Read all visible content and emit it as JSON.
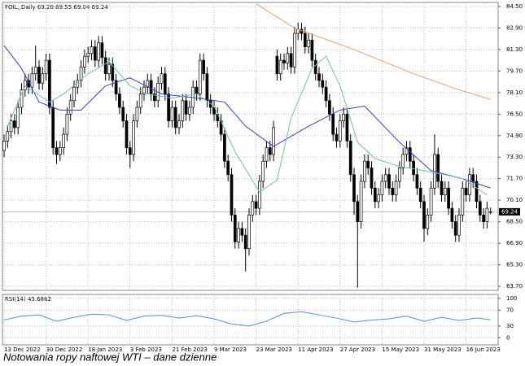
{
  "chart_data": [
    {
      "type": "candlestick",
      "title": "FOIL,,Daily  69.20 69.55 69.04 69.24",
      "categories": [
        "13 Dec 2022",
        null,
        null,
        null,
        null,
        null,
        null,
        null,
        null,
        null,
        null,
        null,
        "30 Dec 2022",
        null,
        null,
        null,
        null,
        null,
        null,
        null,
        null,
        null,
        null,
        null,
        "18 Jan 2023",
        null,
        null,
        null,
        null,
        null,
        null,
        null,
        null,
        null,
        null,
        null,
        "3 Feb 2023",
        null,
        null,
        null,
        null,
        null,
        null,
        null,
        null,
        null,
        null,
        null,
        "21 Feb 2023",
        null,
        null,
        null,
        null,
        null,
        null,
        null,
        null,
        null,
        null,
        null,
        "9 Mar 2023",
        null,
        null,
        null,
        null,
        null,
        null,
        null,
        null,
        null,
        null,
        null,
        "23 Mar 2023",
        null,
        null,
        null,
        null,
        null,
        null,
        null,
        null,
        null,
        null,
        null,
        "11 Apr 2023",
        null,
        null,
        null,
        null,
        null,
        null,
        null,
        null,
        null,
        null,
        null,
        "27 Apr 2023",
        null,
        null,
        null,
        null,
        null,
        null,
        null,
        null,
        null,
        null,
        null,
        "15 May 2023",
        null,
        null,
        null,
        null,
        null,
        null,
        null,
        null,
        null,
        null,
        null,
        "31 May 2023",
        null,
        null,
        null,
        null,
        null,
        null,
        null,
        null,
        null,
        null,
        null,
        "16 Jun 2023",
        null,
        null,
        null,
        null,
        null,
        null,
        null
      ],
      "open": [
        73.8,
        74.5,
        75.2,
        76.0,
        75.5,
        77.0,
        78.3,
        79.0,
        78.5,
        79.5,
        80.0,
        78.8,
        79.5,
        80.5,
        77.0,
        74.0,
        73.5,
        74.0,
        75.0,
        76.5,
        77.5,
        78.5,
        79.0,
        80.0,
        80.8,
        81.0,
        81.5,
        80.5,
        81.8,
        80.7,
        79.5,
        80.2,
        79.0,
        78.0,
        77.0,
        76.0,
        74.0,
        73.5,
        76.0,
        77.0,
        78.0,
        78.5,
        79.0,
        78.0,
        77.5,
        78.8,
        79.5,
        78.0,
        76.0,
        77.0,
        75.5,
        76.0,
        77.5,
        76.5,
        77.0,
        78.5,
        78.0,
        80.5,
        79.5,
        77.5,
        77.0,
        76.5,
        76.0,
        75.0,
        73.0,
        72.0,
        69.0,
        67.0,
        68.0,
        67.5,
        66.5,
        69.0,
        70.0,
        69.5,
        71.5,
        73.0,
        74.0,
        73.5,
        80.8,
        79.5,
        80.5,
        80.3,
        81.0,
        80.0,
        82.5,
        82.8,
        82.5,
        81.5,
        82.0,
        80.5,
        79.5,
        79.0,
        78.5,
        77.5,
        76.5,
        75.0,
        74.5,
        76.0,
        76.5,
        74.5,
        72.0,
        70.0,
        68.5,
        71.5,
        73.0,
        72.5,
        71.0,
        70.0,
        70.5,
        71.5,
        72.0,
        71.0,
        70.5,
        71.5,
        72.5,
        73.5,
        74.0,
        73.0,
        72.0,
        71.0,
        70.0,
        68.0,
        69.0,
        71.0,
        73.5,
        71.5,
        70.5,
        71.0,
        69.5,
        68.5,
        67.5,
        69.0,
        71.0,
        70.5,
        72.0,
        71.5,
        70.0,
        69.0,
        68.5,
        69.2
      ],
      "high": [
        75.0,
        75.7,
        76.5,
        76.5,
        77.5,
        78.8,
        79.5,
        79.5,
        80.0,
        81.6,
        80.5,
        80.0,
        81.0,
        81.0,
        77.5,
        74.5,
        74.5,
        75.5,
        77.0,
        78.0,
        79.0,
        79.5,
        80.5,
        81.3,
        81.5,
        82.0,
        82.0,
        82.3,
        82.3,
        81.2,
        80.7,
        80.7,
        79.5,
        78.5,
        77.5,
        76.5,
        74.5,
        76.5,
        77.5,
        78.5,
        79.0,
        79.5,
        79.5,
        78.5,
        79.3,
        80.0,
        80.0,
        78.5,
        77.5,
        77.5,
        76.5,
        78.0,
        78.0,
        77.5,
        79.0,
        79.0,
        81.0,
        81.0,
        80.0,
        78.0,
        77.5,
        77.0,
        76.5,
        75.5,
        73.5,
        72.5,
        69.5,
        68.5,
        68.5,
        68.0,
        69.5,
        70.5,
        70.5,
        72.0,
        73.5,
        74.5,
        74.5,
        76.0,
        81.3,
        81.0,
        81.0,
        81.5,
        81.5,
        83.0,
        83.3,
        83.3,
        83.0,
        82.5,
        82.5,
        81.0,
        80.0,
        79.5,
        79.0,
        78.0,
        77.0,
        75.5,
        76.5,
        77.0,
        77.0,
        75.0,
        72.5,
        70.5,
        72.0,
        73.5,
        73.5,
        73.0,
        71.5,
        71.0,
        72.0,
        72.5,
        72.5,
        71.5,
        72.0,
        73.0,
        74.0,
        74.5,
        74.5,
        73.5,
        72.5,
        71.5,
        70.5,
        69.5,
        71.5,
        75.0,
        74.0,
        72.0,
        71.5,
        71.5,
        70.0,
        69.0,
        69.5,
        71.5,
        71.5,
        72.5,
        72.5,
        72.0,
        70.5,
        69.5,
        70.0,
        69.55
      ],
      "low": [
        73.3,
        74.0,
        74.7,
        75.0,
        75.0,
        76.5,
        77.8,
        78.0,
        78.0,
        79.0,
        78.3,
        78.3,
        79.0,
        76.5,
        73.5,
        72.8,
        73.0,
        73.5,
        74.5,
        76.0,
        77.0,
        78.0,
        78.5,
        79.5,
        80.3,
        80.5,
        80.0,
        80.0,
        80.2,
        79.0,
        79.0,
        78.5,
        77.5,
        76.5,
        75.5,
        73.5,
        72.5,
        73.0,
        75.5,
        76.5,
        77.5,
        78.0,
        77.5,
        77.0,
        77.0,
        78.3,
        77.5,
        75.5,
        75.5,
        75.0,
        75.0,
        75.5,
        76.0,
        76.0,
        76.5,
        77.5,
        77.5,
        79.0,
        77.0,
        76.5,
        76.0,
        75.5,
        74.5,
        72.5,
        71.5,
        68.5,
        66.5,
        66.5,
        67.0,
        64.8,
        66.0,
        68.5,
        69.0,
        69.0,
        71.0,
        72.5,
        73.0,
        73.0,
        79.0,
        79.0,
        79.8,
        79.8,
        79.5,
        79.5,
        82.0,
        82.0,
        81.0,
        81.0,
        80.0,
        79.0,
        78.5,
        78.0,
        77.0,
        76.0,
        74.5,
        74.0,
        74.0,
        75.5,
        74.0,
        71.5,
        69.0,
        63.6,
        68.0,
        71.0,
        72.0,
        70.5,
        69.5,
        69.5,
        70.0,
        71.0,
        70.5,
        70.0,
        70.0,
        71.0,
        72.0,
        73.0,
        72.5,
        71.5,
        70.5,
        69.5,
        67.0,
        67.5,
        68.5,
        70.5,
        71.0,
        70.0,
        70.0,
        69.0,
        68.0,
        67.0,
        67.0,
        68.5,
        70.0,
        70.0,
        71.0,
        69.5,
        68.5,
        68.0,
        68.0,
        69.04
      ],
      "close": [
        74.5,
        75.2,
        76.0,
        75.5,
        77.0,
        78.3,
        79.0,
        78.5,
        79.5,
        80.0,
        78.8,
        79.5,
        80.5,
        77.0,
        74.0,
        73.5,
        74.0,
        75.0,
        76.5,
        77.5,
        78.5,
        79.0,
        80.0,
        80.8,
        81.0,
        81.5,
        80.5,
        81.8,
        80.7,
        79.5,
        80.2,
        79.0,
        78.0,
        77.0,
        76.0,
        74.0,
        73.5,
        76.0,
        77.0,
        78.0,
        78.5,
        79.0,
        78.0,
        77.5,
        78.8,
        79.5,
        78.0,
        76.0,
        77.0,
        75.5,
        76.0,
        77.5,
        76.5,
        77.0,
        78.5,
        78.0,
        80.5,
        79.5,
        77.5,
        77.0,
        76.5,
        76.0,
        75.0,
        73.0,
        72.0,
        69.0,
        67.0,
        68.0,
        67.5,
        66.5,
        69.0,
        70.0,
        69.5,
        71.5,
        73.0,
        74.0,
        73.5,
        75.5,
        79.5,
        80.5,
        80.3,
        81.0,
        80.0,
        82.5,
        82.8,
        82.5,
        81.5,
        82.0,
        80.5,
        79.5,
        79.0,
        78.5,
        77.5,
        76.5,
        75.0,
        74.5,
        76.0,
        76.5,
        74.5,
        72.0,
        70.0,
        68.5,
        71.5,
        73.0,
        72.5,
        71.0,
        70.0,
        70.5,
        71.5,
        72.0,
        71.0,
        70.5,
        71.5,
        72.5,
        73.5,
        74.0,
        73.0,
        72.0,
        71.0,
        70.0,
        68.0,
        69.0,
        71.0,
        73.5,
        71.5,
        70.5,
        71.0,
        69.5,
        68.5,
        67.5,
        69.0,
        71.0,
        70.5,
        72.0,
        71.5,
        70.0,
        69.0,
        68.5,
        69.5,
        69.24
      ],
      "up_color": "#ffffff",
      "down_color": "#000000",
      "series": [
        {
          "color": "#e8a070",
          "x": [
            72,
            83,
            100,
            117,
            130,
            139
          ],
          "values": [
            84.7,
            82.9,
            81.3,
            79.5,
            78.3,
            77.6
          ]
        },
        {
          "color": "#3a3ad0",
          "x": [
            0,
            5,
            10,
            16,
            22,
            29,
            36,
            45,
            55,
            63,
            69,
            77,
            87,
            96,
            103,
            113,
            122,
            131,
            139
          ],
          "values": [
            81.6,
            79.9,
            77.4,
            76.8,
            76.8,
            78.6,
            79.2,
            78.0,
            77.7,
            77.4,
            75.6,
            74.1,
            75.6,
            76.8,
            77.1,
            74.4,
            72.3,
            71.7,
            71.0
          ]
        },
        {
          "color": "#6cc4a0",
          "x": [
            1,
            6,
            13,
            17,
            24,
            30,
            36,
            41,
            48,
            55,
            60,
            66,
            73,
            78,
            82,
            88,
            92,
            96,
            101,
            106,
            113,
            120,
            126,
            131,
            138
          ],
          "values": [
            75.6,
            78.6,
            77.4,
            78.0,
            79.5,
            80.4,
            78.6,
            78.0,
            77.7,
            78.0,
            77.1,
            73.7,
            70.7,
            71.6,
            76.2,
            79.9,
            80.8,
            78.6,
            74.4,
            73.2,
            72.6,
            72.3,
            72.0,
            71.7,
            70.5
          ]
        }
      ],
      "last_value": 69.24,
      "ylim": [
        63.4,
        84.8
      ],
      "yticks": [
        {
          "value": 84.5,
          "label": "84.50"
        },
        {
          "value": 82.9,
          "label": "82.90"
        },
        {
          "value": 81.3,
          "label": "81.30"
        },
        {
          "value": 79.7,
          "label": "79.70"
        },
        {
          "value": 78.1,
          "label": "78.10"
        },
        {
          "value": 76.5,
          "label": "76.50"
        },
        {
          "value": 74.9,
          "label": "74.90"
        },
        {
          "value": 73.3,
          "label": "73.30"
        },
        {
          "value": 71.7,
          "label": "71.70"
        },
        {
          "value": 70.1,
          "label": "70.10"
        },
        {
          "value": 68.5,
          "label": "68.50"
        },
        {
          "value": 66.9,
          "label": "66.90"
        },
        {
          "value": 65.3,
          "label": "65.30"
        },
        {
          "value": 63.7,
          "label": "63.70"
        }
      ],
      "grid": true
    },
    {
      "type": "line",
      "title": "RSI(14) 45.6862",
      "series": [
        {
          "color": "#4a90d9",
          "x": [
            0,
            5,
            10,
            15,
            20,
            25,
            30,
            35,
            40,
            45,
            50,
            55,
            60,
            65,
            70,
            75,
            80,
            85,
            90,
            95,
            100,
            105,
            110,
            115,
            120,
            125,
            130,
            135,
            139
          ],
          "values": [
            45,
            55,
            58,
            42,
            52,
            60,
            58,
            44,
            55,
            57,
            50,
            56,
            48,
            35,
            30,
            42,
            62,
            66,
            58,
            50,
            40,
            45,
            48,
            55,
            42,
            52,
            44,
            50,
            45.6862
          ]
        }
      ],
      "ylim": [
        -18,
        110
      ],
      "yticks": [
        100,
        70,
        30,
        0
      ],
      "grid": true
    }
  ],
  "caption": "Notowania ropy naftowej WTI – dane dzienne"
}
